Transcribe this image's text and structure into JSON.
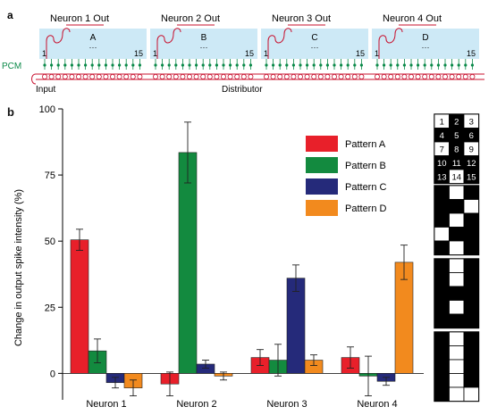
{
  "panel_a": {
    "label": "a",
    "neurons": [
      {
        "out": "Neuron 1 Out",
        "letter": "A"
      },
      {
        "out": "Neuron 2 Out",
        "letter": "B"
      },
      {
        "out": "Neuron 3 Out",
        "letter": "C"
      },
      {
        "out": "Neuron 4 Out",
        "letter": "D"
      }
    ],
    "first_index": "1",
    "last_index": "15",
    "ellipsis": "···",
    "pcm_label": "PCM",
    "input_label": "Input",
    "distributor_label": "Distributor",
    "colors": {
      "block": "#cde9f6",
      "circuit": "#c8102e",
      "pcm": "#0c8a4a"
    }
  },
  "panel_b": {
    "label": "b",
    "patterns": [
      {
        "id": "index",
        "cells": [
          1,
          2,
          3,
          4,
          5,
          6,
          7,
          8,
          9,
          10,
          11,
          12,
          13,
          14,
          15
        ],
        "dark": [
          0,
          1,
          0,
          1,
          1,
          1,
          0,
          1,
          0,
          1,
          1,
          1,
          1,
          0,
          1
        ]
      },
      {
        "id": "A",
        "dark": [
          1,
          0,
          1,
          1,
          1,
          0,
          1,
          0,
          1,
          0,
          1,
          1,
          1,
          0,
          1
        ]
      },
      {
        "id": "B",
        "dark": [
          1,
          0,
          1,
          1,
          0,
          1,
          1,
          1,
          1,
          1,
          0,
          1,
          1,
          1,
          1
        ]
      },
      {
        "id": "C",
        "dark": [
          1,
          0,
          1,
          1,
          0,
          1,
          1,
          0,
          1,
          1,
          0,
          1,
          1,
          0,
          0
        ]
      }
    ]
  },
  "chart_data": {
    "type": "bar",
    "categories": [
      "Neuron 1",
      "Neuron 2",
      "Neuron 3",
      "Neuron 4"
    ],
    "ylabel": "Change in output spike intensity (%)",
    "ylim": [
      -10,
      100
    ],
    "yticks": [
      0,
      25,
      50,
      75,
      100
    ],
    "legend_position": "top-right",
    "series": [
      {
        "name": "Pattern A",
        "color": "#e8202a",
        "values": [
          50.5,
          -4,
          6,
          6
        ],
        "errors": [
          4,
          4.5,
          3,
          4
        ]
      },
      {
        "name": "Pattern B",
        "color": "#138a3f",
        "values": [
          8.5,
          83.5,
          5,
          -1
        ],
        "errors": [
          4.5,
          11.5,
          6,
          7.5
        ]
      },
      {
        "name": "Pattern C",
        "color": "#252a7a",
        "values": [
          -3.5,
          3.5,
          36,
          -3
        ],
        "errors": [
          2,
          1.5,
          5,
          1.5
        ]
      },
      {
        "name": "Pattern D",
        "color": "#f28a1e",
        "values": [
          -5.5,
          -1,
          5,
          42
        ],
        "errors": [
          3,
          1.5,
          2,
          6.5
        ]
      }
    ]
  }
}
